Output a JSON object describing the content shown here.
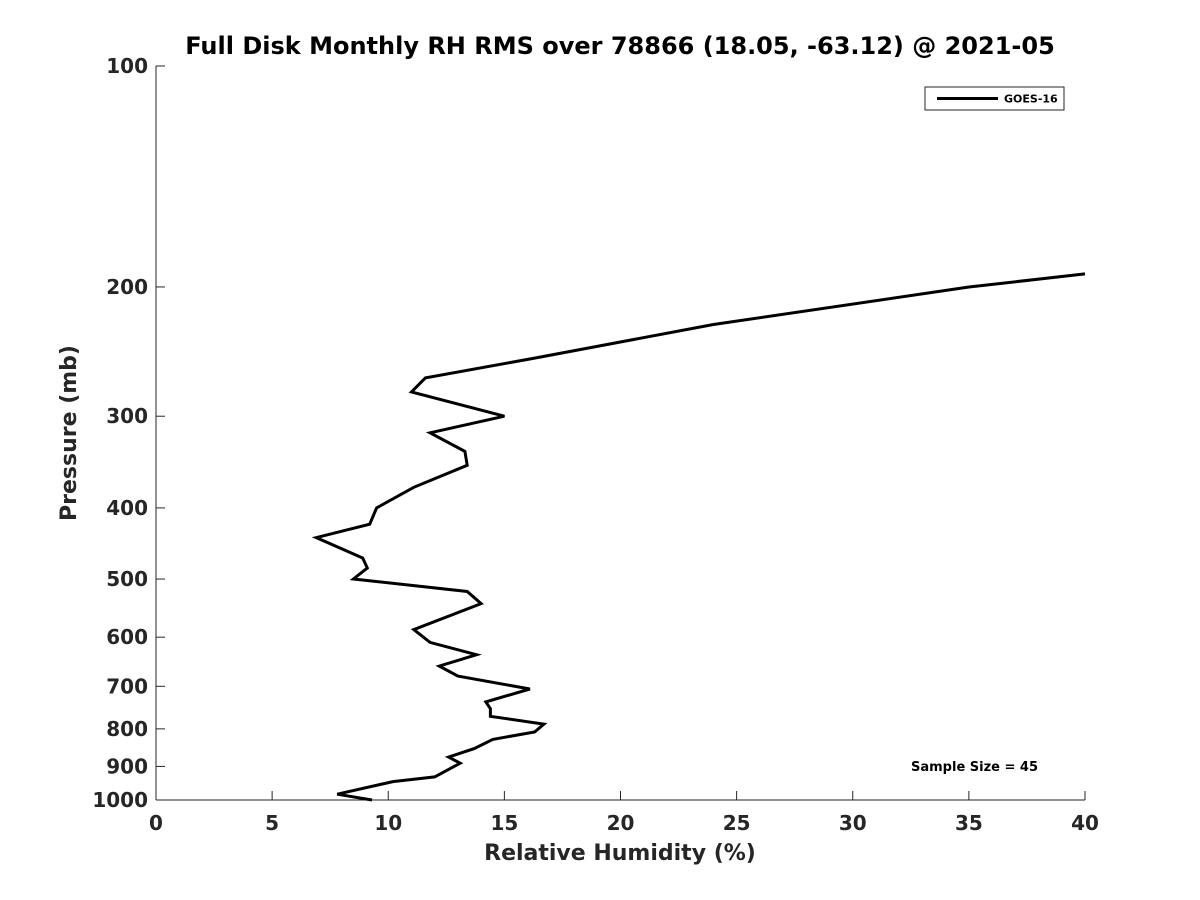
{
  "chart_data": {
    "type": "line",
    "title": "Full Disk Monthly RH RMS over 78866 (18.05, -63.12) @ 2021-05",
    "xlabel": "Relative Humidity (%)",
    "ylabel": "Pressure (mb)",
    "xlim": [
      0,
      40
    ],
    "ylim": [
      100,
      1000
    ],
    "y_scale": "log",
    "y_reversed": true,
    "grid": false,
    "legend_position": "top-right",
    "xticks": [
      "0",
      "5",
      "10",
      "15",
      "20",
      "25",
      "30",
      "35",
      "40"
    ],
    "yticks": [
      "100",
      "200",
      "300",
      "400",
      "500",
      "600",
      "700",
      "800",
      "900",
      "1000"
    ],
    "annotation": "Sample Size = 45",
    "series": [
      {
        "name": "GOES-16",
        "color": "#000000",
        "points": [
          [
            40.0,
            192
          ],
          [
            35.0,
            200
          ],
          [
            24.0,
            225
          ],
          [
            16.3,
            250
          ],
          [
            11.6,
            266
          ],
          [
            11.0,
            278
          ],
          [
            15.0,
            300
          ],
          [
            11.8,
            316
          ],
          [
            13.3,
            335
          ],
          [
            13.4,
            350
          ],
          [
            11.1,
            375
          ],
          [
            9.5,
            400
          ],
          [
            9.2,
            421
          ],
          [
            6.9,
            439
          ],
          [
            8.9,
            468
          ],
          [
            9.1,
            483
          ],
          [
            8.5,
            500
          ],
          [
            13.4,
            520
          ],
          [
            14.0,
            540
          ],
          [
            11.1,
            586
          ],
          [
            11.8,
            610
          ],
          [
            13.8,
            634
          ],
          [
            12.2,
            657
          ],
          [
            13.0,
            678
          ],
          [
            16.1,
            706
          ],
          [
            14.2,
            735
          ],
          [
            14.4,
            751
          ],
          [
            14.4,
            769
          ],
          [
            16.7,
            788
          ],
          [
            16.3,
            808
          ],
          [
            14.5,
            827
          ],
          [
            13.7,
            851
          ],
          [
            12.6,
            874
          ],
          [
            13.1,
            891
          ],
          [
            12.0,
            930
          ],
          [
            10.2,
            944
          ],
          [
            7.8,
            982
          ],
          [
            9.3,
            1000
          ]
        ]
      }
    ]
  }
}
